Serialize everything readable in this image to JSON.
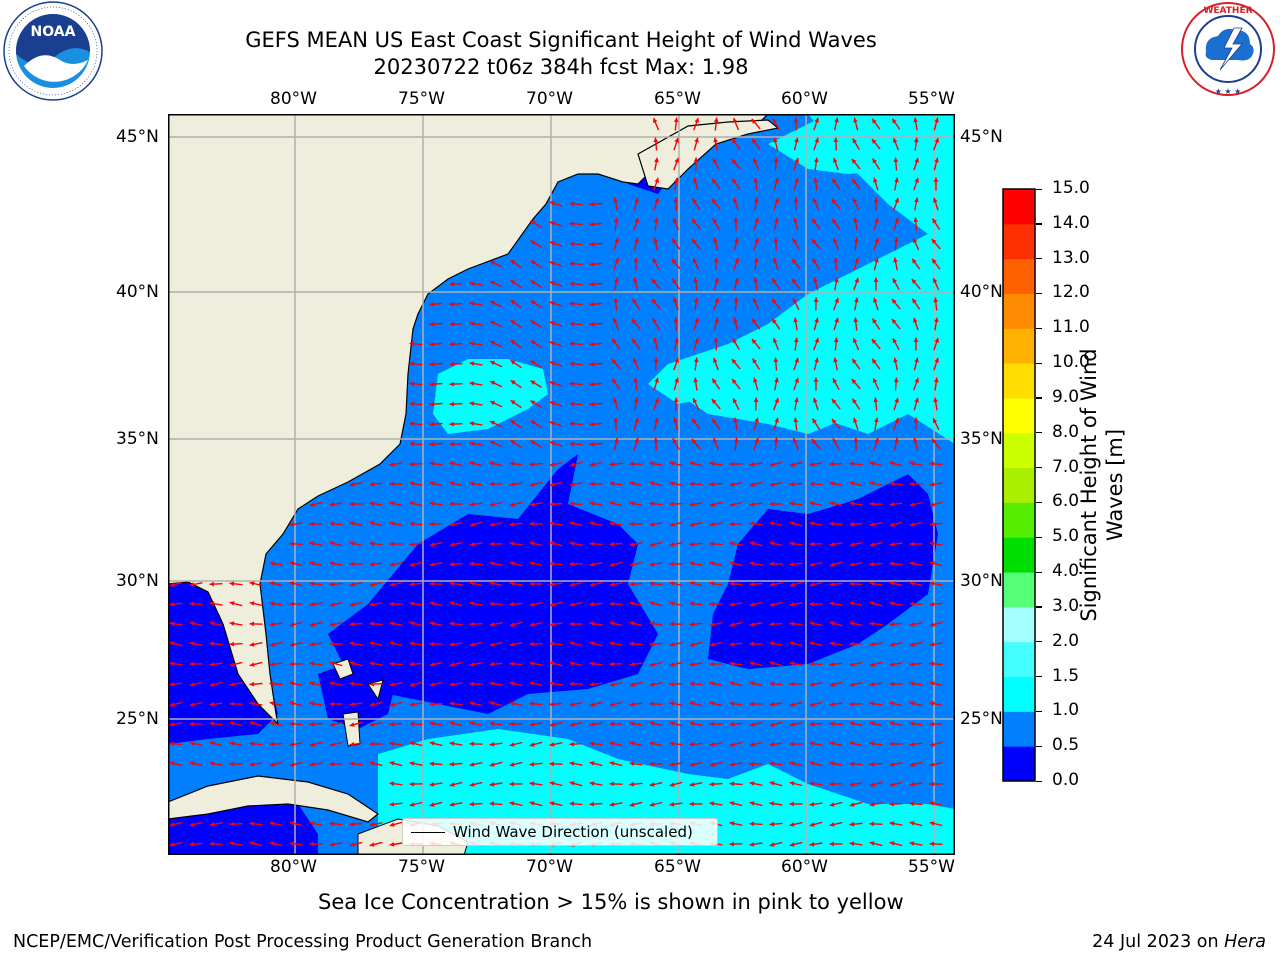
{
  "title": {
    "line1": "GEFS MEAN US East Coast Significant Height of Wind Waves",
    "line2": "20230722 t06z 384h fcst   Max: 1.98"
  },
  "logos": {
    "noaa": {
      "text": "NOAA",
      "ring_text": "NATIONAL OCEANIC AND ATMOSPHERIC ADMINISTRATION · U.S. DEPARTMENT OF COMMERCE"
    },
    "nws": {
      "ring_text": "NATIONAL WEATHER SERVICE"
    }
  },
  "map": {
    "lon_labels": [
      "80°W",
      "75°W",
      "70°W",
      "65°W",
      "60°W",
      "55°W"
    ],
    "lat_labels": [
      "45°N",
      "40°N",
      "35°N",
      "30°N",
      "25°N"
    ],
    "extent": {
      "lon": [
        -85,
        -54.4
      ],
      "lat": [
        20.5,
        45.8
      ]
    },
    "legend_label": "Wind Wave Direction (unscaled)"
  },
  "colorbar": {
    "label": "Significant Height of Wind Waves [m]",
    "ticks": [
      "0.0",
      "0.5",
      "1.0",
      "1.5",
      "2.0",
      "3.0",
      "4.0",
      "5.0",
      "6.0",
      "7.0",
      "8.0",
      "9.0",
      "10.0",
      "11.0",
      "12.0",
      "13.0",
      "14.0",
      "15.0"
    ],
    "colors": [
      "#0000ff",
      "#0080ff",
      "#00ffff",
      "#44ffff",
      "#a6ffff",
      "#55ff77",
      "#00dd00",
      "#55ee00",
      "#aaee00",
      "#ccff00",
      "#ffff00",
      "#ffdd00",
      "#ffb000",
      "#ff8c00",
      "#ff6000",
      "#ff3000",
      "#ff0000"
    ]
  },
  "notes": {
    "sea_ice": "Sea Ice Concentration > 15% is shown in pink to yellow"
  },
  "footer": {
    "left": "NCEP/EMC/Verification Post Processing Product Generation Branch",
    "right_date": "24 Jul 2023 on ",
    "right_host": "Hera"
  },
  "colors": {
    "land": "#efeedc",
    "grid": "#b0b0b0",
    "arrow": "#ff0000",
    "wave_0_0_5": "#0000ff",
    "wave_0_5_1": "#0080ff",
    "wave_1_1_5": "#00ffff"
  }
}
